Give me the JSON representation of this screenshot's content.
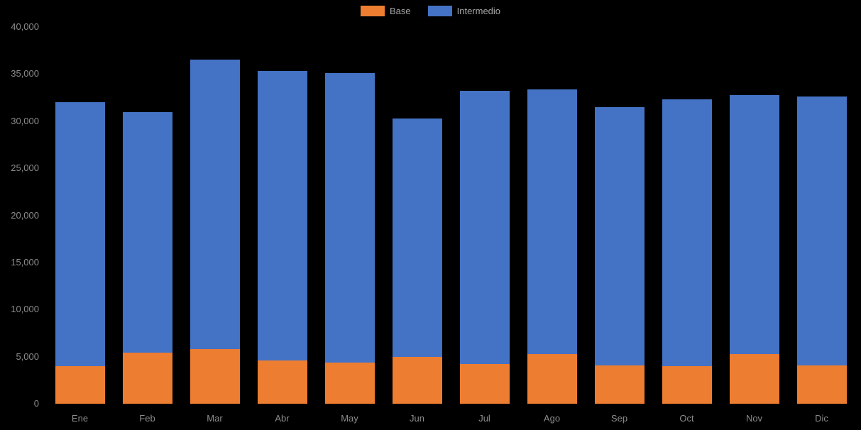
{
  "chart_data": {
    "type": "bar",
    "stacked": true,
    "title": "",
    "xlabel": "",
    "ylabel": "",
    "categories": [
      "Ene",
      "Feb",
      "Mar",
      "Abr",
      "May",
      "Jun",
      "Jul",
      "Ago",
      "Sep",
      "Oct",
      "Nov",
      "Dic"
    ],
    "series": [
      {
        "name": "Base",
        "color": "#ED7D31",
        "values": [
          4000,
          5400,
          5800,
          4600,
          4400,
          5000,
          4200,
          5300,
          4100,
          4000,
          5300,
          4100
        ]
      },
      {
        "name": "Intermedio",
        "color": "#4472C4",
        "values": [
          28000,
          25600,
          30700,
          30700,
          30700,
          25300,
          29000,
          28100,
          27400,
          28300,
          27500,
          28500
        ]
      }
    ],
    "totals": [
      32000,
      31000,
      36500,
      35300,
      35100,
      30300,
      33200,
      33400,
      31500,
      32300,
      32800,
      32600
    ],
    "ylim": [
      0,
      40000
    ],
    "ytick_interval": 5000,
    "ytick_labels": [
      "0",
      "5,000",
      "10,000",
      "15,000",
      "20,000",
      "25,000",
      "30,000",
      "35,000",
      "40,000"
    ],
    "legend_position": "top-center",
    "grid": false
  },
  "colors": {
    "background": "#000000",
    "axis_text": "#8c8c8c",
    "legend_text": "#a6a6a6",
    "base_series": "#ED7D31",
    "intermedio_series": "#4472C4"
  }
}
